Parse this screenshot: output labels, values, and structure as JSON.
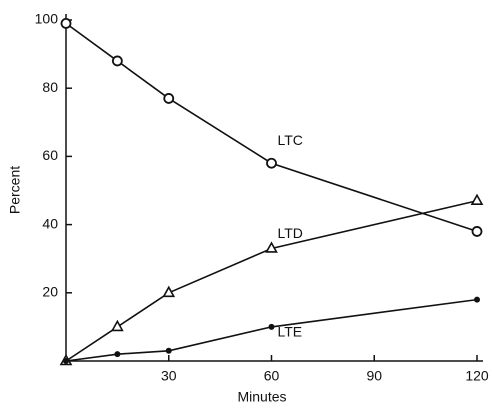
{
  "chart_data": {
    "type": "line",
    "xlabel": "Minutes",
    "ylabel": "Percent",
    "x": [
      0,
      15,
      30,
      60,
      120
    ],
    "series": [
      {
        "name": "LTC",
        "color": "#111111",
        "marker": "circle",
        "values": [
          99,
          88,
          77,
          58,
          38
        ]
      },
      {
        "name": "LTD",
        "color": "#111111",
        "marker": "triangle",
        "values": [
          0,
          10,
          20,
          33,
          47
        ]
      },
      {
        "name": "LTE",
        "color": "#111111",
        "marker": "dot",
        "values": [
          0,
          2,
          3,
          10,
          18
        ]
      }
    ],
    "xlim": [
      0,
      120
    ],
    "ylim": [
      0,
      100
    ],
    "xticks": [
      30,
      60,
      90,
      120
    ],
    "yticks": [
      20,
      40,
      60,
      80,
      100
    ],
    "grid": false
  }
}
